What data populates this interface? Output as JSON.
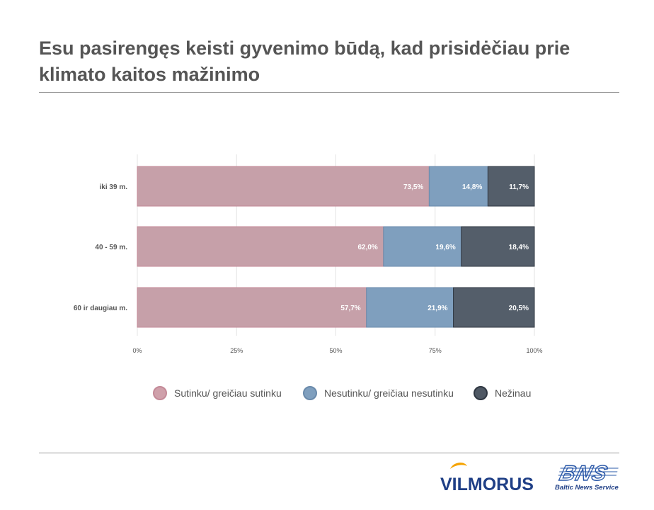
{
  "title": "Esu pasirengęs keisti gyvenimo būdą, kad prisidėčiau prie klimato kaitos mažinimo",
  "legend": [
    {
      "label": "Sutinku/ greičiau sutinku",
      "fill": "#cfa0aa",
      "stroke": "#c48a98"
    },
    {
      "label": "Nesutinku/ greičiau nesutinku",
      "fill": "#7f9fbe",
      "stroke": "#6a8aab"
    },
    {
      "label": "Nežinau",
      "fill": "#4f5864",
      "stroke": "#2f3742"
    }
  ],
  "chart_data": {
    "type": "bar",
    "orientation": "horizontal",
    "stacked": true,
    "categories": [
      "iki 39 m.",
      "40 - 59 m.",
      "60 ir daugiau m."
    ],
    "series": [
      {
        "name": "Sutinku/ greičiau sutinku",
        "values": [
          73.5,
          62.0,
          57.7
        ],
        "labels": [
          "73,5%",
          "62,0%",
          "57,7%"
        ],
        "color": "#c6a0a9"
      },
      {
        "name": "Nesutinku/ greičiau nesutinku",
        "values": [
          14.8,
          19.6,
          21.9
        ],
        "labels": [
          "14,8%",
          "19,6%",
          "21,9%"
        ],
        "color": "#7f9fbe"
      },
      {
        "name": "Nežinau",
        "values": [
          11.7,
          18.4,
          20.5
        ],
        "labels": [
          "11,7%",
          "18,4%",
          "20,5%"
        ],
        "color": "#545e6a"
      }
    ],
    "xlim": [
      0,
      100
    ],
    "xticks": [
      "0%",
      "25%",
      "50%",
      "75%",
      "100%"
    ],
    "grid": true,
    "legend_position": "bottom"
  },
  "logos": {
    "vilmorus": "VILMORUS",
    "bns": "BNS",
    "bns_tagline": "Baltic News Service"
  }
}
